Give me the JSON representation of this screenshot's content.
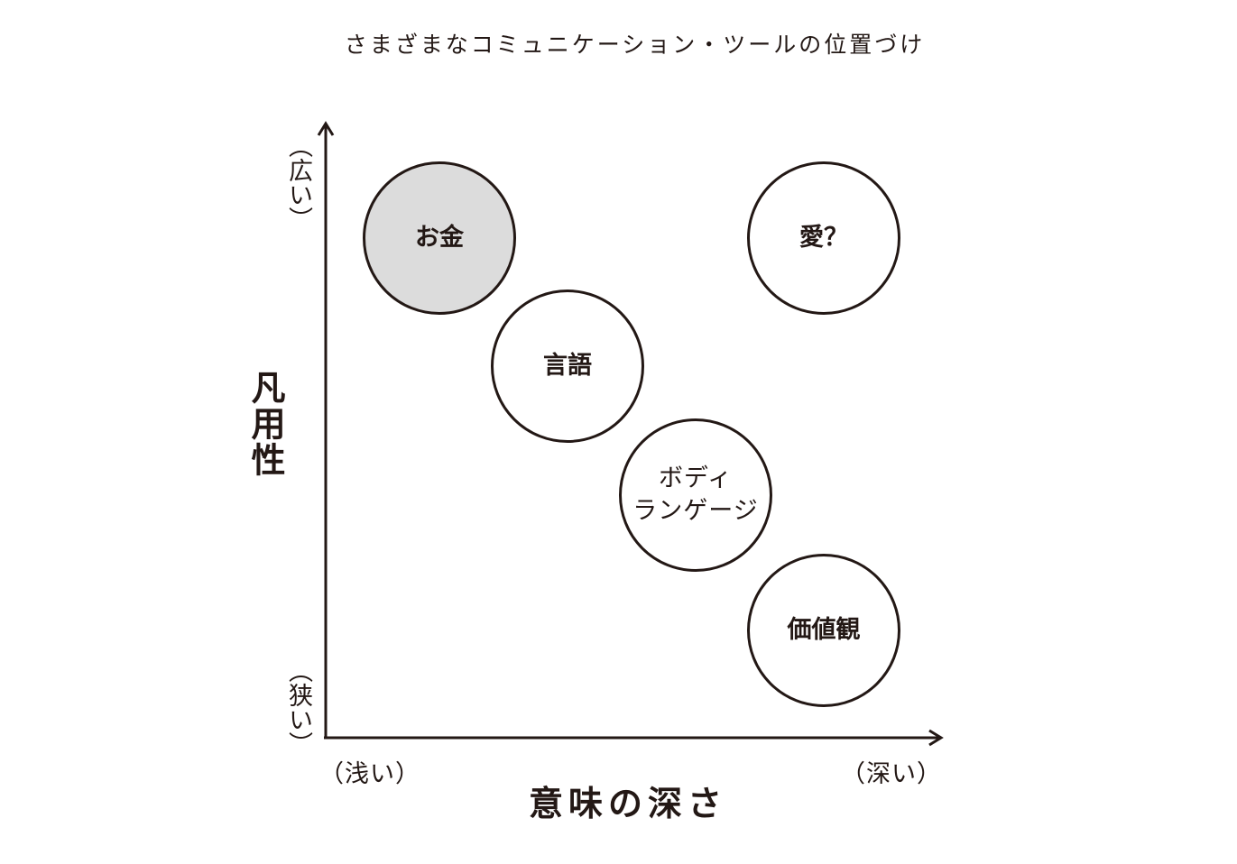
{
  "title": "さまざまなコミュニケーション・ツールの位置づけ",
  "y_axis": {
    "label": "凡用性",
    "top_label": "（広い）",
    "bottom_label": "（狭い）"
  },
  "x_axis": {
    "label": "意味の深さ",
    "left_label": "（浅い）",
    "right_label": "（深い）"
  },
  "nodes": [
    {
      "id": "money",
      "label": "お金",
      "shaded": true
    },
    {
      "id": "love",
      "label": "愛？",
      "shaded": false
    },
    {
      "id": "language",
      "label": "言語",
      "shaded": false
    },
    {
      "id": "body-language",
      "label_line1": "ボディ",
      "label_line2": "ランゲージ",
      "shaded": false
    },
    {
      "id": "values",
      "label": "価値観",
      "shaded": false
    }
  ],
  "colors": {
    "ink": "#231815",
    "shaded_fill": "#dcdcdc",
    "background": "#ffffff"
  }
}
